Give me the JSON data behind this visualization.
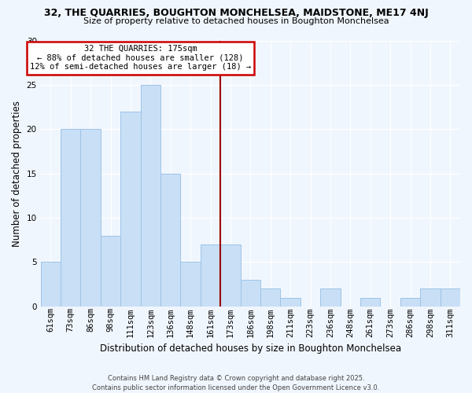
{
  "title1": "32, THE QUARRIES, BOUGHTON MONCHELSEA, MAIDSTONE, ME17 4NJ",
  "title2": "Size of property relative to detached houses in Boughton Monchelsea",
  "xlabel": "Distribution of detached houses by size in Boughton Monchelsea",
  "ylabel": "Number of detached properties",
  "categories": [
    "61sqm",
    "73sqm",
    "86sqm",
    "98sqm",
    "111sqm",
    "123sqm",
    "136sqm",
    "148sqm",
    "161sqm",
    "173sqm",
    "186sqm",
    "198sqm",
    "211sqm",
    "223sqm",
    "236sqm",
    "248sqm",
    "261sqm",
    "273sqm",
    "286sqm",
    "298sqm",
    "311sqm"
  ],
  "values": [
    5,
    20,
    20,
    8,
    22,
    25,
    15,
    5,
    7,
    7,
    3,
    2,
    1,
    0,
    2,
    0,
    1,
    0,
    1,
    2,
    2
  ],
  "bar_color": "#c8dff5",
  "bar_edge_color": "#9ec3e8",
  "vline_x": 8.5,
  "vline_color": "#990000",
  "annotation_title": "32 THE QUARRIES: 175sqm",
  "annotation_line1": "← 88% of detached houses are smaller (128)",
  "annotation_line2": "12% of semi-detached houses are larger (18) →",
  "annotation_box_color": "#ffffff",
  "annotation_box_edge": "#cc0000",
  "ylim": [
    0,
    30
  ],
  "yticks": [
    0,
    5,
    10,
    15,
    20,
    25,
    30
  ],
  "footer1": "Contains HM Land Registry data © Crown copyright and database right 2025.",
  "footer2": "Contains public sector information licensed under the Open Government Licence v3.0.",
  "bg_color": "#f0f6fd",
  "grid_color": "#ffffff",
  "title1_fontsize": 9.0,
  "title2_fontsize": 8.0,
  "ylabel_fontsize": 8.5,
  "xlabel_fontsize": 8.5,
  "tick_fontsize": 7.5,
  "annotation_fontsize": 7.5,
  "footer_fontsize": 6.0
}
